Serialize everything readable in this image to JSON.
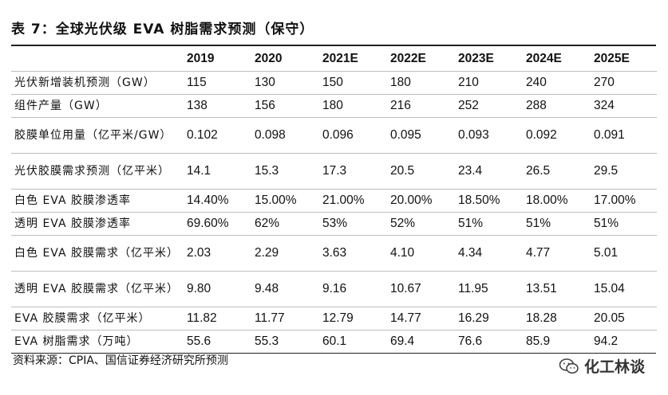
{
  "title": "表 7：全球光伏级 EVA 树脂需求预测（保守）",
  "table": {
    "headers": [
      "",
      "2019",
      "2020",
      "2021E",
      "2022E",
      "2023E",
      "2024E",
      "2025E"
    ],
    "rows": [
      {
        "label": "光伏新增装机预测（GW）",
        "values": [
          "115",
          "130",
          "150",
          "180",
          "210",
          "240",
          "270"
        ]
      },
      {
        "label": "组件产量（GW）",
        "values": [
          "138",
          "156",
          "180",
          "216",
          "252",
          "288",
          "324"
        ]
      },
      {
        "label": "胶膜单位用量（亿平米/GW）",
        "values": [
          "0.102",
          "0.098",
          "0.096",
          "0.095",
          "0.093",
          "0.092",
          "0.091"
        ]
      },
      {
        "label": "光伏胶膜需求预测（亿平米）",
        "values": [
          "14.1",
          "15.3",
          "17.3",
          "20.5",
          "23.4",
          "26.5",
          "29.5"
        ]
      },
      {
        "label": "白色 EVA 胶膜渗透率",
        "values": [
          "14.40%",
          "15.00%",
          "21.00%",
          "20.00%",
          "18.50%",
          "18.00%",
          "17.00%"
        ]
      },
      {
        "label": "透明 EVA 胶膜渗透率",
        "values": [
          "69.60%",
          "62%",
          "53%",
          "52%",
          "51%",
          "51%",
          "51%"
        ]
      },
      {
        "label": "白色 EVA 胶膜需求（亿平米）",
        "values": [
          "2.03",
          "2.29",
          "3.63",
          "4.10",
          "4.34",
          "4.77",
          "5.01"
        ]
      },
      {
        "label": "透明 EVA 胶膜需求（亿平米）",
        "values": [
          "9.80",
          "9.48",
          "9.16",
          "10.67",
          "11.95",
          "13.51",
          "15.04"
        ]
      },
      {
        "label": "EVA 胶膜需求（亿平米）",
        "values": [
          "11.82",
          "11.77",
          "12.79",
          "14.77",
          "16.29",
          "18.28",
          "20.05"
        ]
      },
      {
        "label": "EVA 树脂需求（万吨）",
        "values": [
          "55.6",
          "55.3",
          "60.1",
          "69.4",
          "76.6",
          "85.9",
          "94.2"
        ]
      }
    ]
  },
  "footer": "资料来源：CPIA、国信证券经济研究所预测",
  "watermark": {
    "text": "化工林谈",
    "icon": "wechat-icon"
  }
}
